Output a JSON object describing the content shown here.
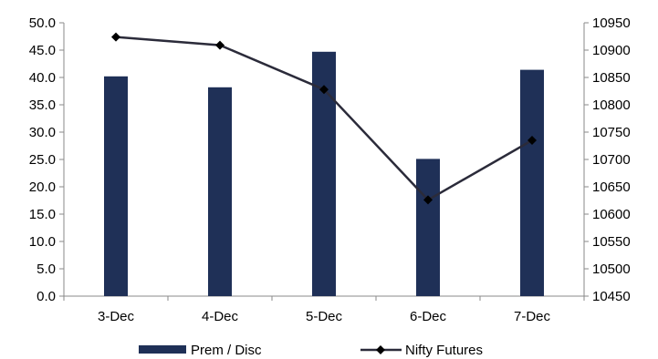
{
  "chart_data": {
    "type": "bar",
    "categories": [
      "3-Dec",
      "4-Dec",
      "5-Dec",
      "6-Dec",
      "7-Dec"
    ],
    "series": [
      {
        "name": "Prem / Disc",
        "type": "bar",
        "axis": "left",
        "values": [
          40.2,
          38.2,
          44.7,
          25.1,
          41.4
        ],
        "color": "#1f3057"
      },
      {
        "name": "Nifty Futures",
        "type": "line",
        "axis": "right",
        "values": [
          10924,
          10909,
          10828,
          10626,
          10735
        ],
        "color": "#2b2b3a",
        "marker": "diamond"
      }
    ],
    "y_left": {
      "ylim": [
        0,
        50
      ],
      "ticks": [
        0,
        5,
        10,
        15,
        20,
        25,
        30,
        35,
        40,
        45,
        50
      ],
      "tick_labels": [
        "0.0",
        "5.0",
        "10.0",
        "15.0",
        "20.0",
        "25.0",
        "30.0",
        "35.0",
        "40.0",
        "45.0",
        "50.0"
      ]
    },
    "y_right": {
      "ylim": [
        10450,
        10950
      ],
      "ticks": [
        10450,
        10500,
        10550,
        10600,
        10650,
        10700,
        10750,
        10800,
        10850,
        10900,
        10950
      ],
      "tick_labels": [
        "10450",
        "10500",
        "10550",
        "10600",
        "10650",
        "10700",
        "10750",
        "10800",
        "10850",
        "10900",
        "10950"
      ]
    },
    "title": "",
    "xlabel": "",
    "ylabel": "",
    "grid": false,
    "legend": "bottom"
  }
}
